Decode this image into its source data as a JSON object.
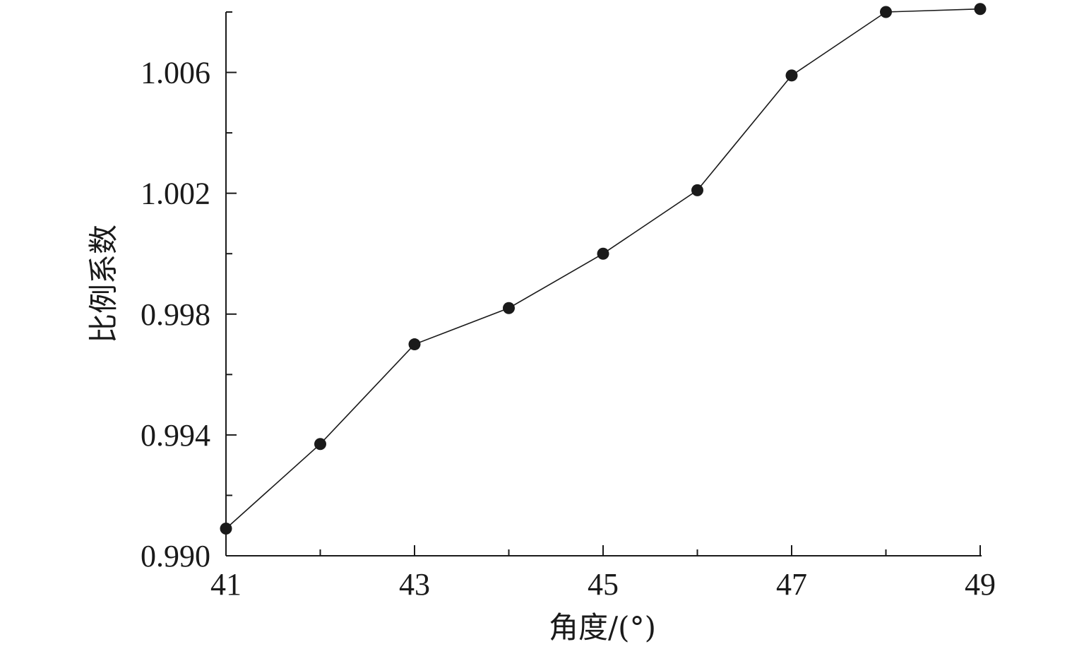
{
  "chart_data": {
    "type": "line",
    "title": "",
    "xlabel": "角度/(°)",
    "ylabel": "比例系数",
    "xlim": [
      41,
      49
    ],
    "ylim": [
      0.99,
      1.008
    ],
    "x_ticks_major": [
      41,
      43,
      45,
      47,
      49
    ],
    "x_tick_labels": [
      "41",
      "43",
      "45",
      "47",
      "49"
    ],
    "y_ticks_major": [
      0.99,
      0.994,
      0.998,
      1.002,
      1.006
    ],
    "y_tick_labels": [
      "0.990",
      "0.994",
      "0.998",
      "1.002",
      "1.006"
    ],
    "grid": false,
    "legend": "none",
    "series": [
      {
        "marker": "filled-circle",
        "color": "#1a1a1a",
        "x": [
          41,
          42,
          43,
          44,
          45,
          46,
          47,
          48,
          49
        ],
        "y": [
          0.9909,
          0.9937,
          0.997,
          0.9982,
          1.0,
          1.0021,
          1.0059,
          1.008,
          1.0081
        ]
      }
    ]
  }
}
